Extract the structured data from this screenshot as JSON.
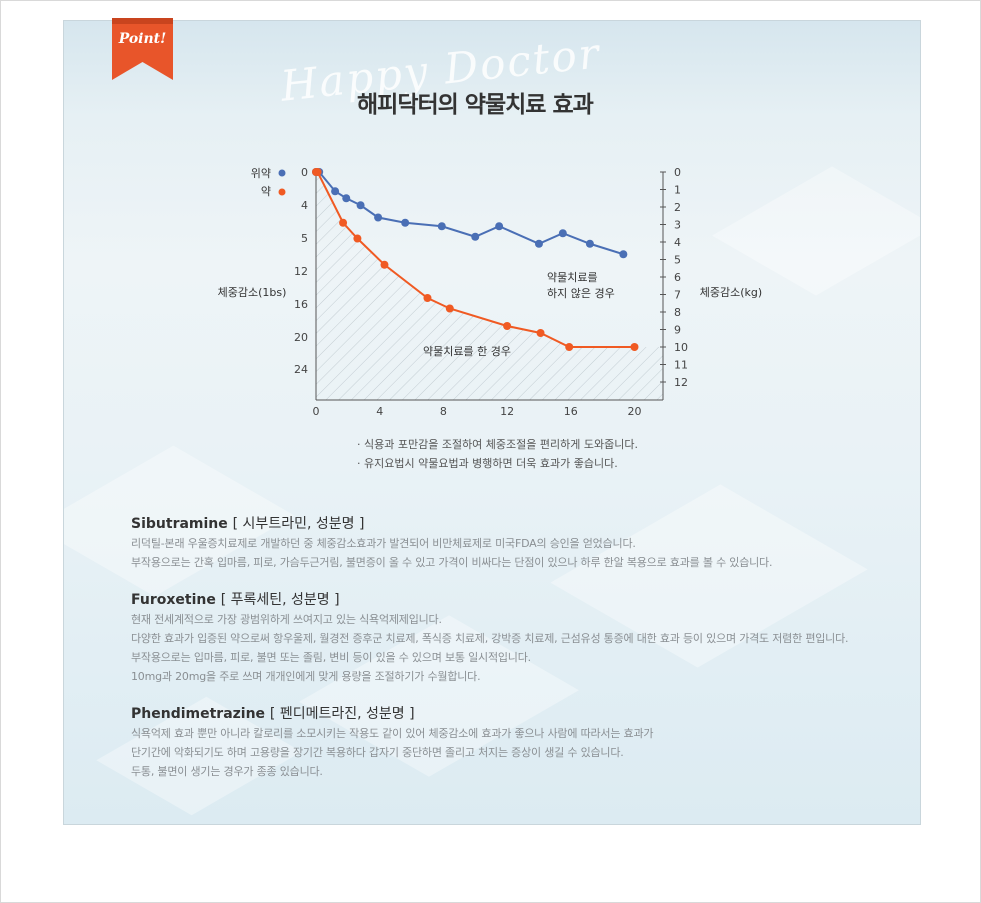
{
  "badge": {
    "label": "Point!"
  },
  "watermark": "Happy Doctor",
  "title": "해피닥터의 약물치료 효과",
  "chart_data": {
    "type": "line",
    "title": "",
    "legend": [
      {
        "name": "위약",
        "color": "#4a6fb5"
      },
      {
        "name": "약",
        "color": "#f05a23"
      }
    ],
    "x_ticks": [
      "0",
      "4",
      "8",
      "12",
      "16",
      "20"
    ],
    "xlim": [
      0,
      22
    ],
    "y_left_label": "체중감소(1bs)",
    "y_left_ticks": [
      "0",
      "4",
      "5",
      "12",
      "16",
      "20",
      "24"
    ],
    "y_right_label": "체중감소(kg)",
    "y_right_ticks": [
      "0",
      "1",
      "2",
      "3",
      "4",
      "5",
      "6",
      "7",
      "8",
      "9",
      "10",
      "11",
      "12"
    ],
    "ylim_kg": [
      0,
      13
    ],
    "series": [
      {
        "name": "위약",
        "color": "#4a6fb5",
        "x": [
          0,
          0.2,
          1.2,
          1.9,
          2.8,
          3.9,
          5.6,
          7.9,
          10,
          11.5,
          14,
          15.5,
          17.2,
          19.3
        ],
        "y": [
          0,
          0,
          1.1,
          1.5,
          1.9,
          2.6,
          2.9,
          3.1,
          3.7,
          3.1,
          4.1,
          3.5,
          4.1,
          4.7
        ]
      },
      {
        "name": "약",
        "color": "#f05a23",
        "x": [
          0,
          0.1,
          1.7,
          2.6,
          4.3,
          7,
          8.4,
          12,
          14.1,
          15.9,
          20
        ],
        "y": [
          0,
          0,
          2.9,
          3.8,
          5.3,
          7.2,
          7.8,
          8.8,
          9.2,
          10,
          10
        ]
      }
    ],
    "annotations": [
      {
        "text": "약물치료를",
        "series": "위약"
      },
      {
        "text": "하지 않은 경우",
        "series": "위약"
      },
      {
        "text": "약물치료를 한 경우",
        "series": "약"
      }
    ]
  },
  "notes": [
    "· 식용과 포만감을 조절하여 체중조절을 편리하게 도와줍니다.",
    "· 유지요법시 약물요법과 병행하면 더욱 효과가 좋습니다."
  ],
  "drugs": [
    {
      "name": "Sibutramine",
      "ko": "[ 시부트라민, 성분명 ]",
      "lines": [
        "리덕틸-본래 우울증치료제로 개발하던 중 체중감소효과가 발견되어 비만체료제로 미국FDA의 승인을 얻었습니다.",
        "부작용으로는 간혹 입마름, 피로, 가슴두근거림, 불면증이 올 수 있고 가격이 비싸다는 단점이 있으나 하루 한알 복용으로 효과를 볼 수 있습니다."
      ]
    },
    {
      "name": "Furoxetine",
      "ko": "[ 푸록세틴, 성분명 ]",
      "lines": [
        "현재 전세계적으로 가장 광범위하게 쓰여지고 있는 식욕억제제입니다.",
        "다양한 효과가 입증된 약으로써 항우울제, 월경전 증후군 치료제, 폭식증 치료제, 강박증 치료제, 근섬유성 통증에 대한 효과 등이 있으며 가격도 저렴한 편입니다.",
        "부작용으로는 입마름, 피로, 불면 또는 졸림, 변비 등이 있을 수 있으며 보통 일시적입니다.",
        "10mg과 20mg을 주로 쓰며 개개인에게 맞게 용량을 조절하기가 수월합니다."
      ]
    },
    {
      "name": "Phendimetrazine",
      "ko": "[ 펜디메트라진, 성분명 ]",
      "lines": [
        "식욕억제 효과 뿐만 아니라 칼로리를 소모시키는 작용도 같이 있어 체중감소에 효과가 좋으나 사람에 따라서는 효과가",
        "단기간에 악화되기도 하며 고용량을 장기간 복용하다 갑자기 중단하면 졸리고 처지는 증상이 생길 수 있습니다.",
        "두통, 불면이 생기는 경우가 종종 있습니다."
      ]
    }
  ]
}
